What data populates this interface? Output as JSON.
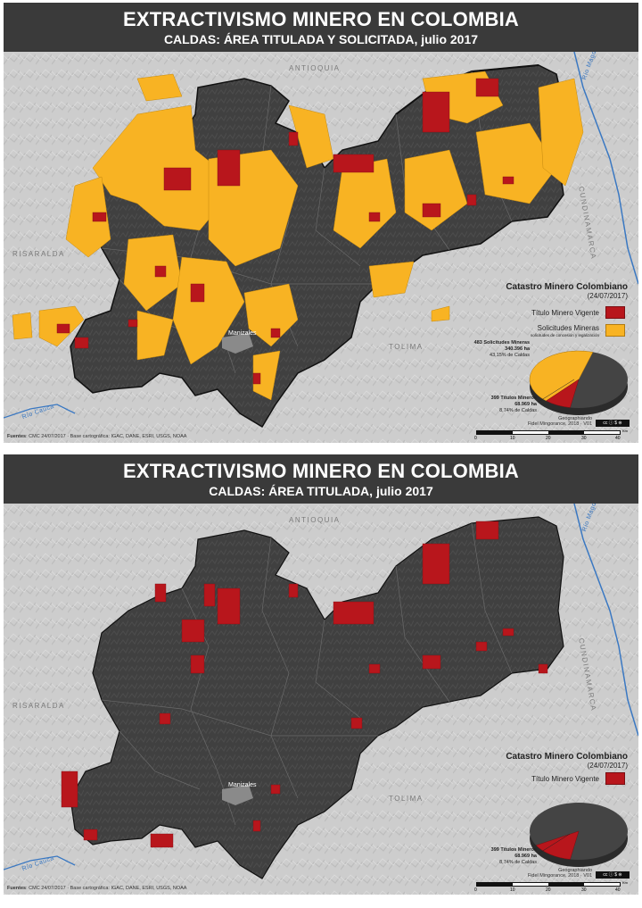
{
  "panels": [
    {
      "title": "EXTRACTIVISMO MINERO EN COLOMBIA",
      "subtitle": "CALDAS: ÁREA TITULADA Y SOLICITADA, julio 2017",
      "map_labels": {
        "antioquia": "ANTIOQUIA",
        "risaralda": "RISARALDA",
        "tolima": "TOLIMA",
        "cundinamarca": "CUNDINAMARCA",
        "rio_magdalena": "Río Magdalena",
        "rio_cauca": "Río Cauca",
        "manizales": "Manizales"
      },
      "legend": {
        "title": "Catastro Minero Colombiano",
        "date": "(24/07/2017)",
        "item_titulo": "Título Minero Vigente",
        "item_solicitudes": "Solicitudes Mineras",
        "item_solicitudes_sub": "solicitudes de concesión y legalización"
      },
      "pie": {
        "solicitudes_line1": "483 Solicitudes Mineras",
        "solicitudes_line2": "340.396 ha",
        "solicitudes_line3": "43,15% de Caldas",
        "titulos_line1": "399 Títulos Mineros",
        "titulos_line2": "68.969 ha",
        "titulos_line3": "8,74% de Caldas",
        "titulos_pct": 8.74,
        "solicitudes_pct": 43.15
      },
      "footer": {
        "fuentes_label": "Fuentes",
        "fuentes_text": ": CMC 24/07/2017 · Base cartográfica: IGAC, DANE, ESRI, USGS, NOAA"
      },
      "credit": {
        "line1": "Geographiando",
        "line2": "Fidel Mingorance, 2018 · V01",
        "badge": "cc ⓘ $ ⊜"
      },
      "scale": {
        "ticks": [
          "0",
          "10",
          "20",
          "30",
          "40"
        ],
        "unit": "Km"
      }
    },
    {
      "title": "EXTRACTIVISMO MINERO EN COLOMBIA",
      "subtitle": "CALDAS: ÁREA TITULADA, julio 2017",
      "map_labels": {
        "antioquia": "ANTIOQUIA",
        "risaralda": "RISARALDA",
        "tolima": "TOLIMA",
        "cundinamarca": "CUNDINAMARCA",
        "rio_magdalena": "Río Magdalena",
        "rio_cauca": "Río Cauca",
        "manizales": "Manizales"
      },
      "legend": {
        "title": "Catastro Minero Colombiano",
        "date": "(24/07/2017)",
        "item_titulo": "Título Minero Vigente"
      },
      "pie": {
        "titulos_line1": "399 Títulos Mineros",
        "titulos_line2": "68.969 ha",
        "titulos_line3": "8,74% de Caldas",
        "titulos_pct": 8.74
      },
      "footer": {
        "fuentes_label": "Fuentes",
        "fuentes_text": ": CMC 24/07/2017 · Base cartográfica: IGAC, DANE, ESRI, USGS, NOAA"
      },
      "credit": {
        "line1": "Geographiando",
        "line2": "Fidel Mingorance, 2018 · V01",
        "badge": "cc ⓘ $ ⊜"
      },
      "scale": {
        "ticks": [
          "0",
          "10",
          "20",
          "30",
          "40"
        ],
        "unit": "Km"
      }
    }
  ],
  "colors": {
    "header_bg": "#3a3a3a",
    "map_bg": "#cfcfcf",
    "caldas": "#3f3f3f",
    "titulo": "#b8161c",
    "solicitud": "#f8b323",
    "river": "#3a78c2"
  }
}
